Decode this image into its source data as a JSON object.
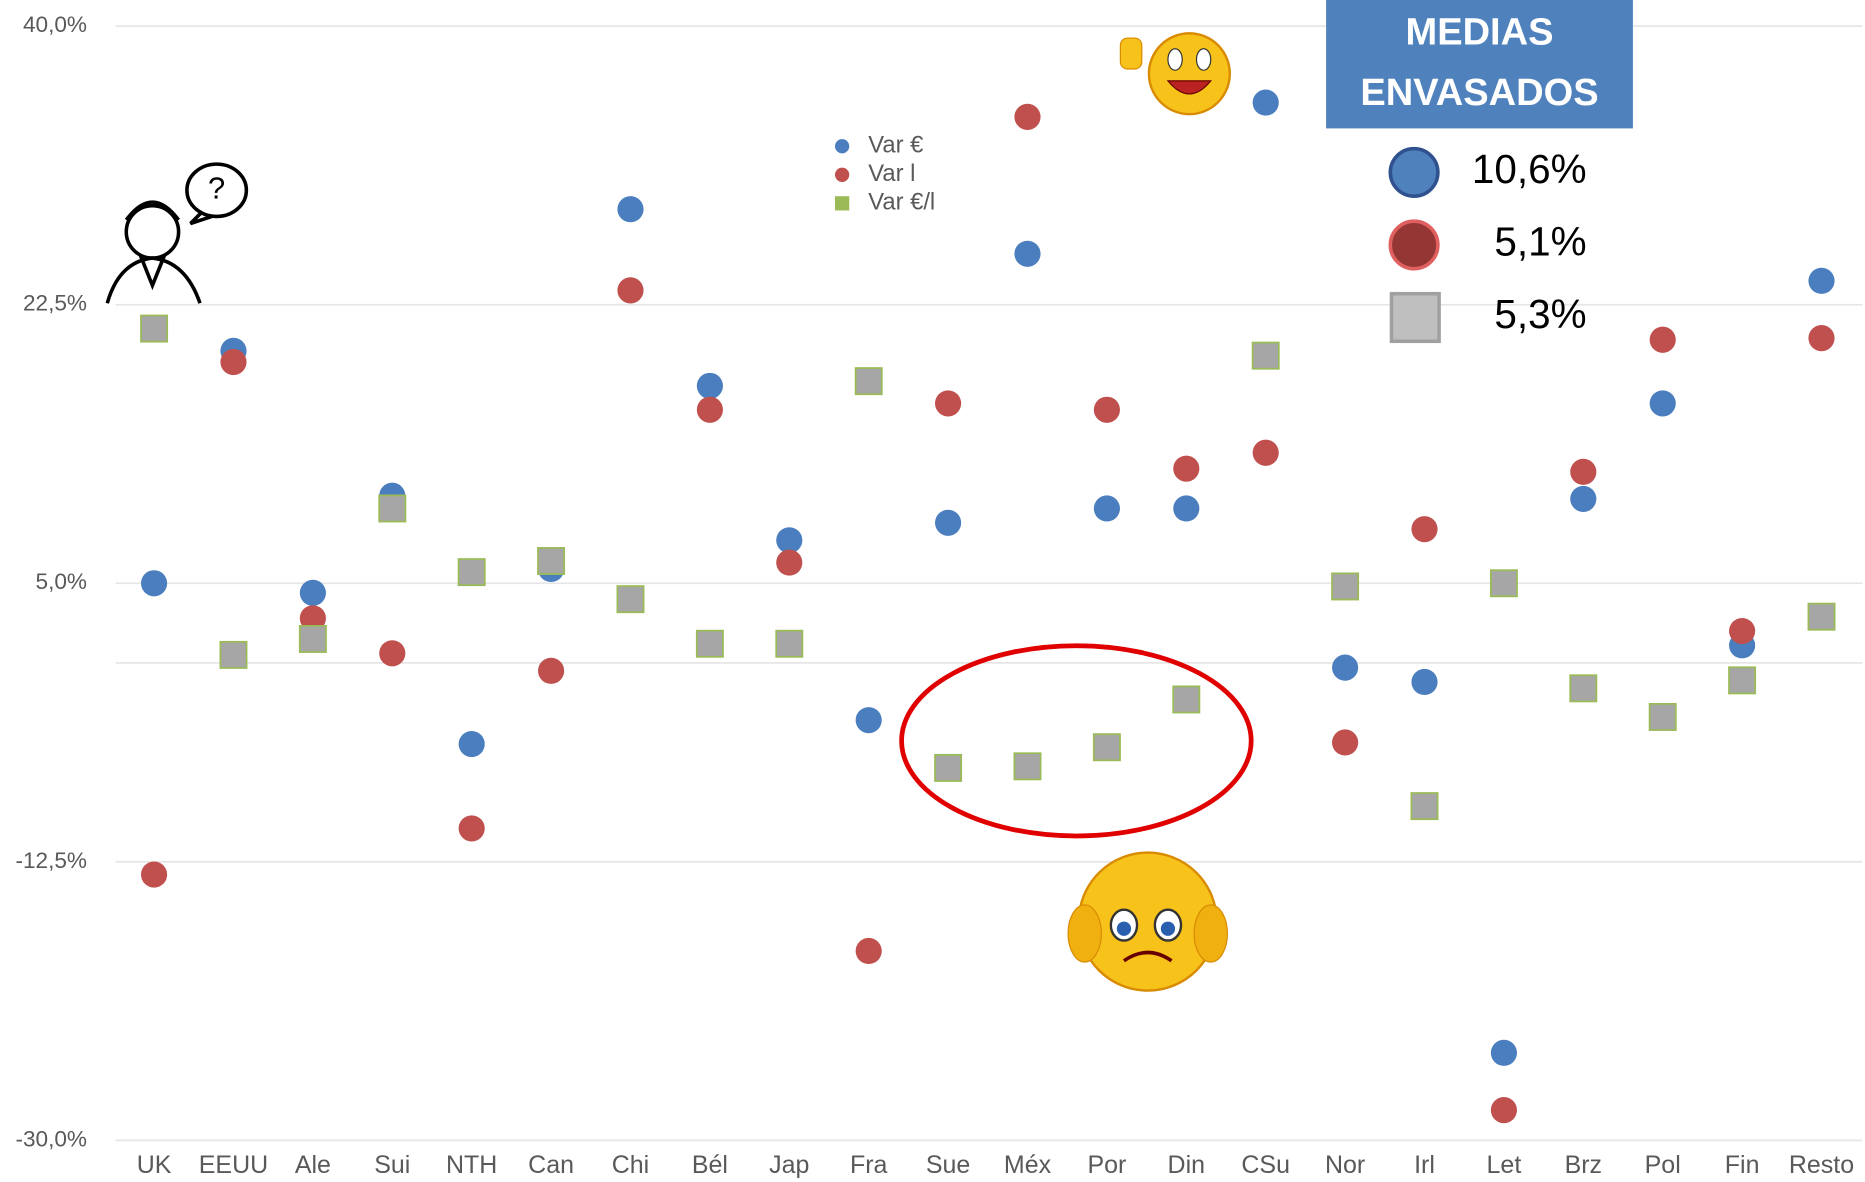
{
  "chart_data": {
    "type": "scatter",
    "categories": [
      "UK",
      "EEUU",
      "Ale",
      "Sui",
      "NTH",
      "Can",
      "Chi",
      "Bél",
      "Jap",
      "Fra",
      "Sue",
      "Méx",
      "Por",
      "Din",
      "CSu",
      "Nor",
      "Irl",
      "Let",
      "Brz",
      "Pol",
      "Fin",
      "Resto"
    ],
    "series": [
      {
        "name": "Var €",
        "color": "#4a7ebf",
        "marker": "circle",
        "values": [
          5.0,
          19.6,
          4.4,
          10.5,
          -5.1,
          5.9,
          28.5,
          17.4,
          7.7,
          -3.6,
          8.8,
          25.7,
          9.7,
          9.7,
          35.2,
          -0.3,
          -1.2,
          -24.5,
          10.3,
          16.3,
          1.1,
          24.0
        ]
      },
      {
        "name": "Var l",
        "color": "#c0504d",
        "marker": "circle",
        "values": [
          -13.3,
          18.9,
          2.8,
          0.6,
          -10.4,
          -0.5,
          23.4,
          15.9,
          6.3,
          -18.1,
          16.3,
          34.3,
          15.9,
          12.2,
          13.2,
          -5.0,
          8.4,
          -28.1,
          12.0,
          20.3,
          2.0,
          20.4
        ]
      },
      {
        "name": "Var €/l",
        "color": "#a6a6a6",
        "edge": "#9bbb59",
        "marker": "square",
        "values": [
          21.0,
          0.5,
          1.5,
          9.7,
          5.7,
          6.4,
          4.0,
          1.2,
          1.2,
          17.7,
          -6.6,
          -6.5,
          -5.3,
          -2.3,
          19.3,
          4.8,
          -9.0,
          5.0,
          -1.6,
          -3.4,
          -1.1,
          2.9
        ]
      }
    ],
    "ylim": [
      -30,
      40
    ],
    "yticks": [
      {
        "value": -30,
        "label": "-30,0%"
      },
      {
        "value": -12.5,
        "label": "-12,5%"
      },
      {
        "value": 5,
        "label": "5,0%"
      },
      {
        "value": 22.5,
        "label": "22,5%"
      },
      {
        "value": 40,
        "label": "40,0%"
      }
    ],
    "grid": true,
    "medias": {
      "title_lines": [
        "MEDIAS",
        "ENVASADOS"
      ],
      "values": [
        10.6,
        5.1,
        5.3
      ],
      "value_labels": [
        "10,6%",
        "5,1%",
        "5,3%"
      ]
    }
  }
}
